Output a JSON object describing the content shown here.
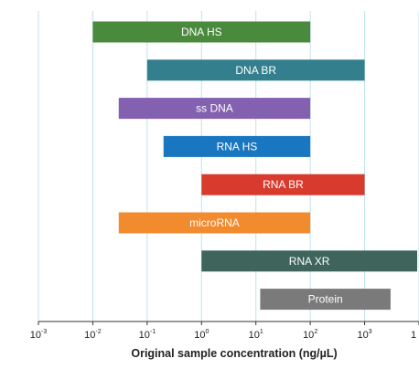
{
  "chart_data": {
    "type": "bar",
    "orientation": "horizontal-range",
    "title": "",
    "xlabel": "Original sample concentration (ng/µL)",
    "ylabel": "",
    "xscale": "log",
    "xlim": [
      0.001,
      10000
    ],
    "grid": true,
    "x_ticks": [
      {
        "base": "10",
        "exp": "-3"
      },
      {
        "base": "10",
        "exp": "-2"
      },
      {
        "base": "10",
        "exp": "-1"
      },
      {
        "base": "10",
        "exp": "0"
      },
      {
        "base": "10",
        "exp": "1"
      },
      {
        "base": "10",
        "exp": "2"
      },
      {
        "base": "10",
        "exp": "3"
      },
      {
        "base": "1",
        "exp": ""
      }
    ],
    "bars": [
      {
        "name": "DNA HS",
        "start": 0.01,
        "end": 100,
        "color": "#4a8a3c"
      },
      {
        "name": "DNA BR",
        "start": 0.1,
        "end": 1000,
        "color": "#347f8e"
      },
      {
        "name": "ss DNA",
        "start": 0.03,
        "end": 100,
        "color": "#8361b0"
      },
      {
        "name": "RNA HS",
        "start": 0.2,
        "end": 100,
        "color": "#1976c0"
      },
      {
        "name": "RNA BR",
        "start": 1,
        "end": 1000,
        "color": "#d83b2e"
      },
      {
        "name": "microRNA",
        "start": 0.03,
        "end": 100,
        "color": "#f28a2e"
      },
      {
        "name": "RNA XR",
        "start": 1,
        "end": 10000,
        "color": "#3f645c"
      },
      {
        "name": "Protein",
        "start": 12,
        "end": 3000,
        "color": "#7a7a7a"
      }
    ]
  }
}
